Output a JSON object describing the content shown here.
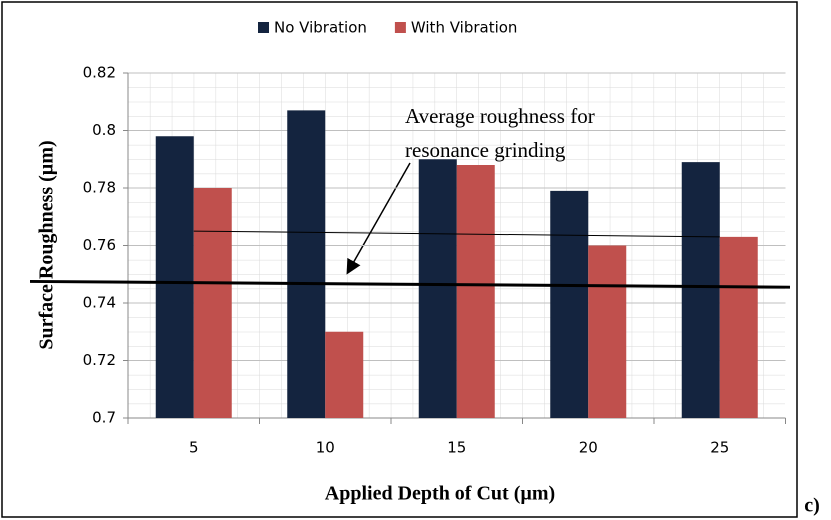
{
  "chart_data": {
    "type": "bar",
    "categories": [
      "5",
      "10",
      "15",
      "20",
      "25"
    ],
    "series": [
      {
        "name": "No Vibration",
        "color": "#14243f",
        "values": [
          0.798,
          0.807,
          0.79,
          0.779,
          0.789
        ]
      },
      {
        "name": "With Vibration",
        "color": "#c0504d",
        "values": [
          0.78,
          0.73,
          0.788,
          0.76,
          0.763
        ]
      }
    ],
    "ylim": [
      0.7,
      0.82
    ],
    "yticks": [
      0.7,
      0.72,
      0.74,
      0.76,
      0.78,
      0.8,
      0.82
    ],
    "grid": true,
    "xlabel": "Applied  Depth of Cut (µm)",
    "ylabel": "Surface Roughness (µm)",
    "annotation": [
      "Average roughness for",
      "resonance grinding"
    ],
    "reference_lines": [
      {
        "values": [
          0.765,
          0.763
        ]
      },
      {
        "values": [
          0.7475,
          0.7455
        ]
      }
    ],
    "panel_label": "c)"
  }
}
